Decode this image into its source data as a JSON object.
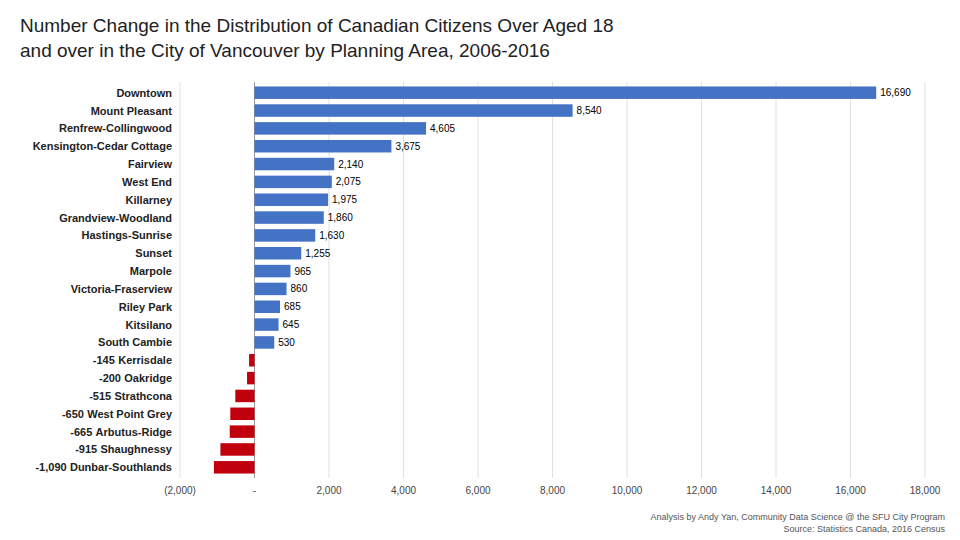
{
  "chart_data": {
    "type": "bar",
    "orientation": "horizontal",
    "title": "Number Change in the Distribution of Canadian Citizens Over Aged 18\nand over in the City of Vancouver by Planning Area, 2006-2016",
    "categories": [
      "Downtown",
      "Mount Pleasant",
      "Renfrew-Collingwood",
      "Kensington-Cedar Cottage",
      "Fairview",
      "West End",
      "Killarney",
      "Grandview-Woodland",
      "Hastings-Sunrise",
      "Sunset",
      "Marpole",
      "Victoria-Fraserview",
      "Riley Park",
      "Kitsilano",
      "South Cambie",
      "Kerrisdale",
      "Oakridge",
      "Strathcona",
      "West Point Grey",
      "Arbutus-Ridge",
      "Shaughnessy",
      "Dunbar-Southlands"
    ],
    "values": [
      16690,
      8540,
      4605,
      3675,
      2140,
      2075,
      1975,
      1860,
      1630,
      1255,
      965,
      860,
      685,
      645,
      530,
      -145,
      -200,
      -515,
      -650,
      -665,
      -915,
      -1090
    ],
    "value_labels": [
      "16,690",
      "8,540",
      "4,605",
      "3,675",
      "2,140",
      "2,075",
      "1,975",
      "1,860",
      "1,630",
      "1,255",
      "965",
      "860",
      "685",
      "645",
      "530",
      "-145",
      "-200",
      "-515",
      "-650",
      "-665",
      "-915",
      "-1,090"
    ],
    "data_labels": true,
    "colors": [
      "#4472C4",
      "#4472C4",
      "#4472C4",
      "#4472C4",
      "#4472C4",
      "#4472C4",
      "#4472C4",
      "#4472C4",
      "#4472C4",
      "#4472C4",
      "#4472C4",
      "#4472C4",
      "#4472C4",
      "#4472C4",
      "#4472C4",
      "#C0000C",
      "#C0000C",
      "#C0000C",
      "#C0000C",
      "#C0000C",
      "#C0000C",
      "#C0000C"
    ],
    "xlim": [
      -2000,
      18000
    ],
    "xticks": [
      {
        "value": -2000,
        "label": "(2,000)"
      },
      {
        "value": 0,
        "label": "-"
      },
      {
        "value": 2000,
        "label": "2,000"
      },
      {
        "value": 4000,
        "label": "4,000"
      },
      {
        "value": 6000,
        "label": "6,000"
      },
      {
        "value": 8000,
        "label": "8,000"
      },
      {
        "value": 10000,
        "label": "10,000"
      },
      {
        "value": 12000,
        "label": "12,000"
      },
      {
        "value": 14000,
        "label": "14,000"
      },
      {
        "value": 16000,
        "label": "16,000"
      },
      {
        "value": 18000,
        "label": "18,000"
      }
    ],
    "grid": true,
    "annotations": [
      "Analysis by Andy Yan, Community Data Science @ the SFU City Program\nSource: Statistics Canada, 2016 Census"
    ]
  }
}
